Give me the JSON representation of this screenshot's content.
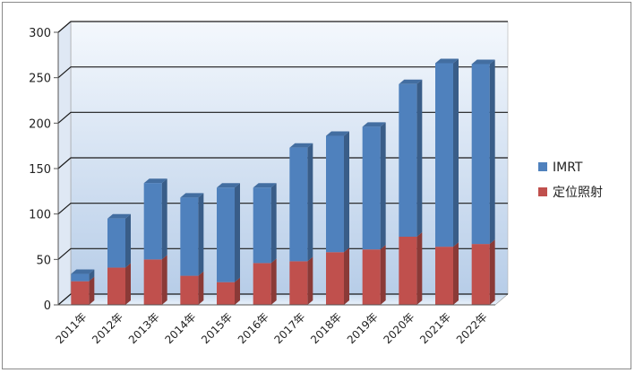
{
  "chart_data": {
    "type": "bar",
    "stacked": true,
    "categories": [
      "2011年",
      "2012年",
      "2013年",
      "2014年",
      "2015年",
      "2016年",
      "2017年",
      "2018年",
      "2019年",
      "2020年",
      "2021年",
      "2022年"
    ],
    "series": [
      {
        "name": "定位照射",
        "color": "#c0504d",
        "values": [
          26,
          41,
          50,
          32,
          25,
          46,
          48,
          58,
          61,
          75,
          64,
          67
        ]
      },
      {
        "name": "IMRT",
        "color": "#4f81bd",
        "values": [
          8,
          54,
          84,
          86,
          104,
          83,
          125,
          128,
          135,
          168,
          202,
          198
        ]
      }
    ],
    "title": "",
    "xlabel": "",
    "ylabel": "",
    "ylim": [
      0,
      300
    ],
    "yticks": [
      0,
      50,
      100,
      150,
      200,
      250,
      300
    ],
    "grid": true,
    "legend_position": "right",
    "legend_order": [
      "IMRT",
      "定位照射"
    ]
  }
}
